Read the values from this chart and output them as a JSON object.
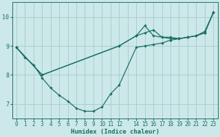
{
  "xlabel": "Humidex (Indice chaleur)",
  "bg_color": "#cce8e8",
  "grid_color": "#aacece",
  "line_color": "#1a6e64",
  "xlim": [
    -0.5,
    23.5
  ],
  "ylim": [
    6.5,
    10.5
  ],
  "yticks": [
    7,
    8,
    9,
    10
  ],
  "xtick_vals": [
    0,
    1,
    2,
    3,
    4,
    5,
    6,
    7,
    8,
    9,
    10,
    11,
    12,
    13,
    14,
    15,
    16,
    17,
    18,
    19,
    20,
    21,
    22,
    23
  ],
  "xtick_labels": [
    "0",
    "1",
    "2",
    "3",
    "4",
    "5",
    "6",
    "7",
    "8",
    "9",
    "10",
    "11",
    "12",
    "",
    "14",
    "15",
    "16",
    "17",
    "18",
    "19",
    "20",
    "21",
    "22",
    "23"
  ],
  "line1_x": [
    0,
    1,
    2,
    3,
    4,
    5,
    6,
    7,
    8,
    9,
    10,
    11,
    12,
    14,
    15,
    16,
    17,
    18,
    19,
    20,
    21,
    22,
    23
  ],
  "line1_y": [
    8.95,
    8.6,
    8.35,
    7.9,
    7.55,
    7.3,
    7.1,
    6.85,
    6.75,
    6.75,
    6.9,
    7.35,
    7.65,
    8.95,
    9.0,
    9.05,
    9.1,
    9.2,
    9.25,
    9.3,
    9.35,
    9.45,
    10.15
  ],
  "line2_x": [
    0,
    3,
    12,
    14,
    15,
    16,
    17,
    18,
    19,
    20,
    21,
    22,
    23
  ],
  "line2_y": [
    8.95,
    8.0,
    9.0,
    9.35,
    9.45,
    9.55,
    9.3,
    9.25,
    9.25,
    9.3,
    9.35,
    9.45,
    10.15
  ],
  "line3_x": [
    0,
    3,
    12,
    14,
    15,
    16,
    17,
    18,
    19,
    20,
    21,
    22,
    23
  ],
  "line3_y": [
    8.95,
    8.0,
    9.0,
    9.35,
    9.7,
    9.35,
    9.3,
    9.3,
    9.25,
    9.3,
    9.35,
    9.5,
    10.15
  ]
}
